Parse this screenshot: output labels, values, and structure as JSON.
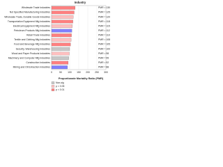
{
  "chart_data": {
    "type": "barh",
    "title": "Industry",
    "categories": [
      "Wholesale Trade Industries",
      "Not Specified Manufacturing Industries",
      "Wholesale Trade, Durable Goods Industries",
      "Transportation Equipment Mfg Industries",
      "Electrical Equipment Mfg Industries",
      "Petroleum Products Mfg Industries",
      "Retail Trade Industries",
      "Textile and Clothing Mfg Industries",
      "Food and Beverage Mfg Industries",
      "Security, Warehousing Industries",
      "Wood and Paper Products Industries",
      "Machinery and Computer Mfg Industries",
      "Construction Industries",
      "Mining and Oil Extraction Industries"
    ],
    "values": [
      130,
      125,
      120,
      118,
      115,
      112,
      110,
      108,
      105,
      100,
      98,
      95,
      92,
      88
    ],
    "value_labels": [
      "PMR = 130",
      "PMR = 125",
      "PMR = 120",
      "PMR = 118",
      "PMR = 115",
      "PMR = 112",
      "PMR = 110",
      "PMR = 108",
      "PMR = 105",
      "PMR = 100",
      "PMR = 98",
      "PMR = 95",
      "PMR = 92",
      "PMR = 88"
    ],
    "colors": [
      "#ff8080",
      "#ff8080",
      "#ffc0c0",
      "#ff8080",
      "#ffc0c0",
      "#8080ff",
      "#ff8080",
      "#ffc0c0",
      "#ff8080",
      "#c8c8c8",
      "#ffc0c0",
      "#c8c8c8",
      "#ff8080",
      "#8080ff"
    ],
    "xlim": [
      0,
      300
    ],
    "xticks": [
      0,
      50,
      100,
      150,
      200,
      250,
      300
    ],
    "xlabel": "Proportionate Mortality Ratio (PMR)",
    "legend": [
      {
        "name": "Non-sig",
        "color": "#c8c8c8"
      },
      {
        "name": "p < 0.05",
        "color": "#ffc0c0"
      },
      {
        "name": "p < 0.01",
        "color": "#ff8080"
      }
    ]
  }
}
